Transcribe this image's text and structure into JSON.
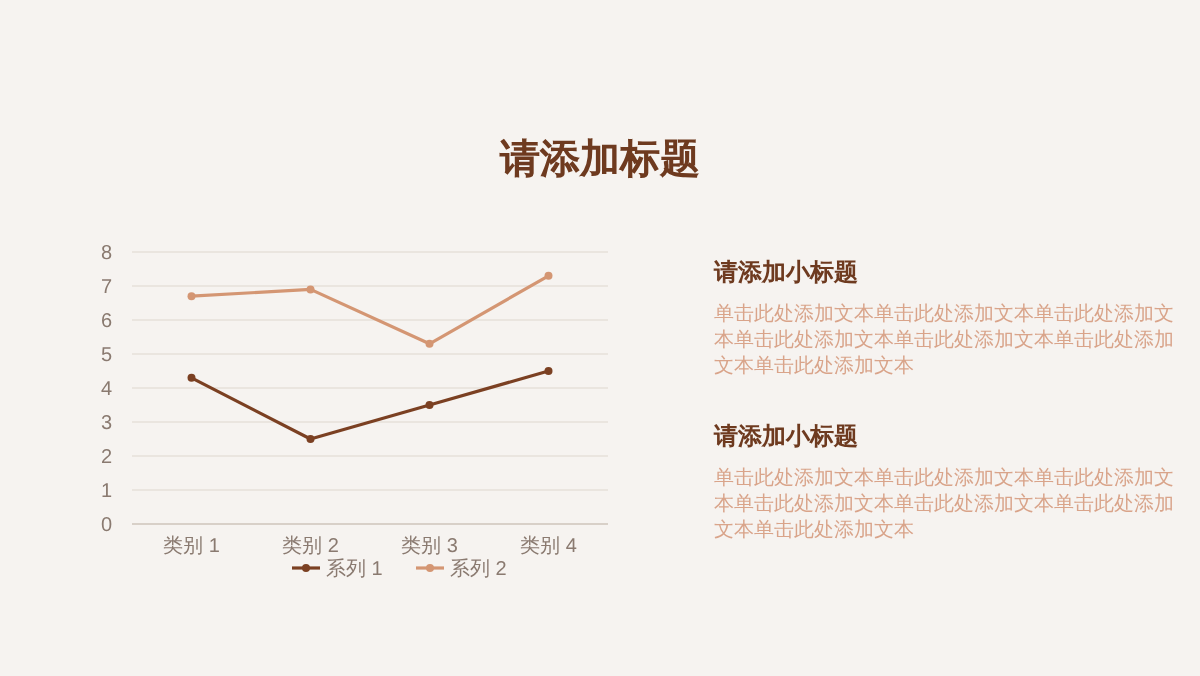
{
  "chart_data": [
    {
      "type": "line",
      "title": "请添加标题",
      "categories": [
        "类别 1",
        "类别 2",
        "类别 3",
        "类别 4"
      ],
      "series": [
        {
          "name": "系列 1",
          "color": "#7b4022",
          "values": [
            4.3,
            2.5,
            3.5,
            4.5
          ]
        },
        {
          "name": "系列 2",
          "color": "#d49673",
          "values": [
            6.7,
            6.9,
            5.3,
            7.3
          ]
        }
      ],
      "ylim": [
        0,
        8
      ],
      "yticks": [
        0,
        1,
        2,
        3,
        4,
        5,
        6,
        7,
        8
      ],
      "grid": "y",
      "legend": "bottom",
      "marker": "circle",
      "line_style": "solid"
    },
    {
      "type": "other",
      "annotations": [
        "请添加小标题",
        "单击此处添加文本单击此处添加文本单击此处添加文本单击此处添加文本单击此处添加文本单击此处添加文本单击此处添加文本",
        "请添加小标题",
        "单击此处添加文本单击此处添加文本单击此处添加文本单击此处添加文本单击此处添加文本单击此处添加文本单击此处添加文本"
      ]
    }
  ]
}
